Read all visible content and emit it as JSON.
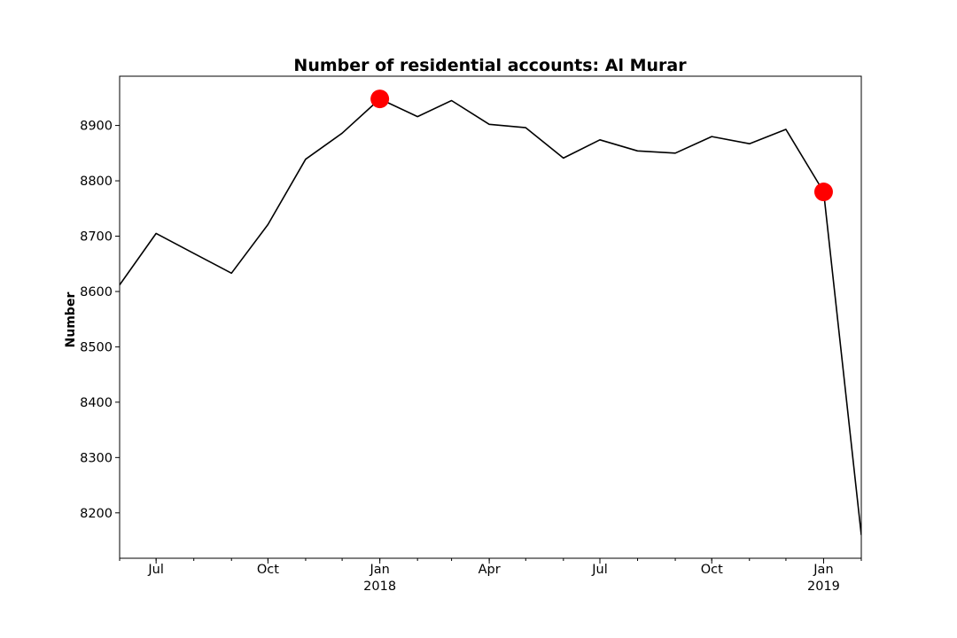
{
  "chart_data": {
    "type": "line",
    "title": "Number of residential accounts: Al Murar",
    "xlabel": "",
    "ylabel": "Number",
    "x_dates": [
      "2017-06-01",
      "2017-07-01",
      "2017-08-01",
      "2017-09-01",
      "2017-10-01",
      "2017-11-01",
      "2017-12-01",
      "2018-01-01",
      "2018-02-01",
      "2018-03-01",
      "2018-04-01",
      "2018-05-01",
      "2018-06-01",
      "2018-07-01",
      "2018-08-01",
      "2018-09-01",
      "2018-10-01",
      "2018-11-01",
      "2018-12-01",
      "2019-01-01",
      "2019-02-01"
    ],
    "values": [
      8612,
      8705,
      8669,
      8633,
      8721,
      8839,
      8886,
      8948,
      8916,
      8945,
      8902,
      8896,
      8841,
      8874,
      8854,
      8850,
      8880,
      8867,
      8893,
      8780,
      8160
    ],
    "highlighted_points": [
      {
        "x": "2018-01-01",
        "y": 8948
      },
      {
        "x": "2019-01-01",
        "y": 8780
      }
    ],
    "xlim": [
      "2017-06-01",
      "2019-02-01"
    ],
    "ylim": [
      8118,
      8989
    ],
    "y_ticks": [
      8200,
      8300,
      8400,
      8500,
      8600,
      8700,
      8800,
      8900
    ],
    "x_major_ticks": [
      {
        "x": "2017-07-01",
        "label": "Jul",
        "sublabel": ""
      },
      {
        "x": "2017-10-01",
        "label": "Oct",
        "sublabel": ""
      },
      {
        "x": "2018-01-01",
        "label": "Jan",
        "sublabel": "2018"
      },
      {
        "x": "2018-04-01",
        "label": "Apr",
        "sublabel": ""
      },
      {
        "x": "2018-07-01",
        "label": "Jul",
        "sublabel": ""
      },
      {
        "x": "2018-10-01",
        "label": "Oct",
        "sublabel": ""
      },
      {
        "x": "2019-01-01",
        "label": "Jan",
        "sublabel": "2019"
      }
    ],
    "line_color": "#000000",
    "marker_color": "#ff0000",
    "grid": false,
    "legend": "none"
  }
}
